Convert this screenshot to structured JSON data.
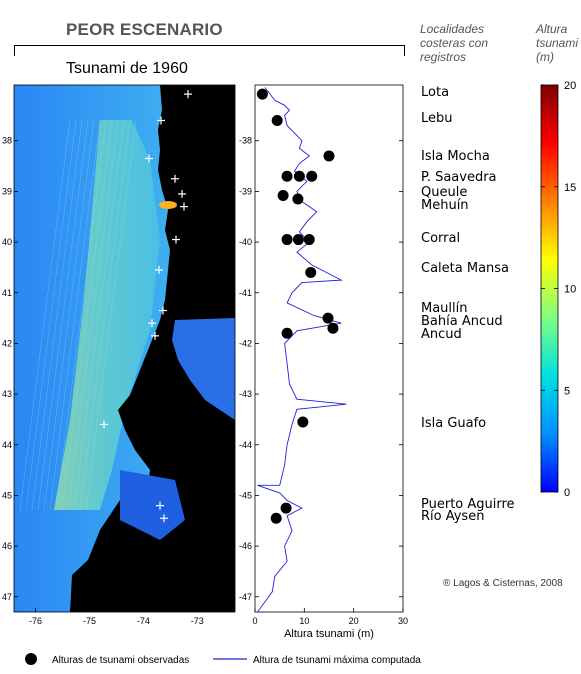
{
  "header": {
    "scenario_title": "PEOR ESCENARIO",
    "event_label": "Tsunami de 1960",
    "localities_header": [
      "Localidades",
      "costeras con",
      "registros"
    ],
    "unit_header": [
      "Altura",
      "tsunami",
      "(m)"
    ],
    "credit": "® Lagos & Cisternas, 2008"
  },
  "localities": [
    {
      "name": "Lota",
      "lat": -37.08
    },
    {
      "name": "Lebu",
      "lat": -37.6
    },
    {
      "name": "Isla Mocha",
      "lat": -38.35
    },
    {
      "name": "P. Saavedra",
      "lat": -38.75
    },
    {
      "name": "Queule",
      "lat": -39.05
    },
    {
      "name": "Mehuín",
      "lat": -39.3
    },
    {
      "name": "Corral",
      "lat": -39.95
    },
    {
      "name": "Caleta Mansa",
      "lat": -40.55
    },
    {
      "name": "Maullín",
      "lat": -41.35
    },
    {
      "name": "Bahía Ancud",
      "lat": -41.6
    },
    {
      "name": "Ancud",
      "lat": -41.85
    },
    {
      "name": "Isla Guafo",
      "lat": -43.6
    },
    {
      "name": "Puerto Aguirre",
      "lat": -45.2
    },
    {
      "name": "Río Aysen",
      "lat": -45.45
    }
  ],
  "map": {
    "x_ticks": [
      "-76",
      "-75",
      "-74",
      "-73"
    ],
    "y_ticks": [
      "38",
      "39",
      "40",
      "41",
      "42",
      "43",
      "44",
      "45",
      "46",
      "47"
    ],
    "colors": {
      "land": "#000000",
      "ocean": "#1e78f0",
      "near_shore": "#7fd8c8",
      "hotspot": "#ffb020"
    }
  },
  "chart_data": {
    "type": "scatter",
    "xlabel": "Altura tsunami (m)",
    "xlim": [
      0,
      30
    ],
    "ylim": [
      -47.3,
      -36.9
    ],
    "x_ticks": [
      0,
      10,
      20,
      30
    ],
    "y_ticks": [
      -38,
      -39,
      -40,
      -41,
      -42,
      -43,
      -44,
      -45,
      -46,
      -47
    ],
    "series": [
      {
        "name": "Alturas de tsunami observadas",
        "kind": "points",
        "color": "#000000",
        "points": [
          {
            "x": 1.5,
            "y": -37.08
          },
          {
            "x": 4.5,
            "y": -37.6
          },
          {
            "x": 15,
            "y": -38.3
          },
          {
            "x": 6.5,
            "y": -38.7
          },
          {
            "x": 9,
            "y": -38.7
          },
          {
            "x": 11.5,
            "y": -38.7
          },
          {
            "x": 5.7,
            "y": -39.08
          },
          {
            "x": 8.7,
            "y": -39.15
          },
          {
            "x": 6.5,
            "y": -39.95
          },
          {
            "x": 8.8,
            "y": -39.95
          },
          {
            "x": 11,
            "y": -39.95
          },
          {
            "x": 11.3,
            "y": -40.6
          },
          {
            "x": 14.8,
            "y": -41.5
          },
          {
            "x": 15.8,
            "y": -41.7
          },
          {
            "x": 6.5,
            "y": -41.8
          },
          {
            "x": 9.7,
            "y": -43.55
          },
          {
            "x": 6.3,
            "y": -45.25
          },
          {
            "x": 4.3,
            "y": -45.45
          }
        ]
      },
      {
        "name": "Altura de tsunami máxima computada",
        "kind": "line",
        "color": "#2020dd",
        "points": [
          {
            "x": 2,
            "y": -36.95
          },
          {
            "x": 4,
            "y": -37.2
          },
          {
            "x": 6,
            "y": -37.3
          },
          {
            "x": 7,
            "y": -37.4
          },
          {
            "x": 6,
            "y": -37.5
          },
          {
            "x": 6.5,
            "y": -37.7
          },
          {
            "x": 8,
            "y": -37.85
          },
          {
            "x": 9.5,
            "y": -38.0
          },
          {
            "x": 9,
            "y": -38.15
          },
          {
            "x": 11,
            "y": -38.3
          },
          {
            "x": 9,
            "y": -38.45
          },
          {
            "x": 8,
            "y": -38.6
          },
          {
            "x": 10.5,
            "y": -38.8
          },
          {
            "x": 8.5,
            "y": -39.0
          },
          {
            "x": 9.5,
            "y": -39.2
          },
          {
            "x": 12.5,
            "y": -39.4
          },
          {
            "x": 10.5,
            "y": -39.6
          },
          {
            "x": 9,
            "y": -39.8
          },
          {
            "x": 11,
            "y": -40.0
          },
          {
            "x": 8.5,
            "y": -40.2
          },
          {
            "x": 11.5,
            "y": -40.45
          },
          {
            "x": 17.5,
            "y": -40.75
          },
          {
            "x": 9.5,
            "y": -40.8
          },
          {
            "x": 7.5,
            "y": -41.0
          },
          {
            "x": 6.5,
            "y": -41.2
          },
          {
            "x": 12,
            "y": -41.45
          },
          {
            "x": 17.5,
            "y": -41.6
          },
          {
            "x": 8.5,
            "y": -41.75
          },
          {
            "x": 6,
            "y": -42.0
          },
          {
            "x": 6.5,
            "y": -42.4
          },
          {
            "x": 7,
            "y": -42.8
          },
          {
            "x": 8.5,
            "y": -43.1
          },
          {
            "x": 18.5,
            "y": -43.2
          },
          {
            "x": 8.5,
            "y": -43.3
          },
          {
            "x": 7.5,
            "y": -43.6
          },
          {
            "x": 6.5,
            "y": -44.0
          },
          {
            "x": 6,
            "y": -44.4
          },
          {
            "x": 5,
            "y": -44.8
          },
          {
            "x": 0.5,
            "y": -44.8
          },
          {
            "x": 5,
            "y": -44.95
          },
          {
            "x": 6.5,
            "y": -45.1
          },
          {
            "x": 9.5,
            "y": -45.25
          },
          {
            "x": 6.5,
            "y": -45.4
          },
          {
            "x": 7.5,
            "y": -45.7
          },
          {
            "x": 6,
            "y": -46.0
          },
          {
            "x": 6.5,
            "y": -46.3
          },
          {
            "x": 4,
            "y": -46.6
          },
          {
            "x": 3.5,
            "y": -46.9
          },
          {
            "x": 2,
            "y": -47.1
          },
          {
            "x": 0.5,
            "y": -47.3
          }
        ]
      }
    ],
    "colorbar": {
      "label": "Altura tsunami (m)",
      "range": [
        0,
        20
      ],
      "ticks": [
        0,
        5,
        10,
        15,
        20
      ],
      "colors": [
        "#0000ff",
        "#0090ff",
        "#00e0e0",
        "#7fff80",
        "#ffff00",
        "#ff8000",
        "#ff0000",
        "#800000"
      ]
    }
  },
  "legend": {
    "observed": "Alturas de tsunami observadas",
    "computed": "Altura de tsunami máxima computada"
  }
}
